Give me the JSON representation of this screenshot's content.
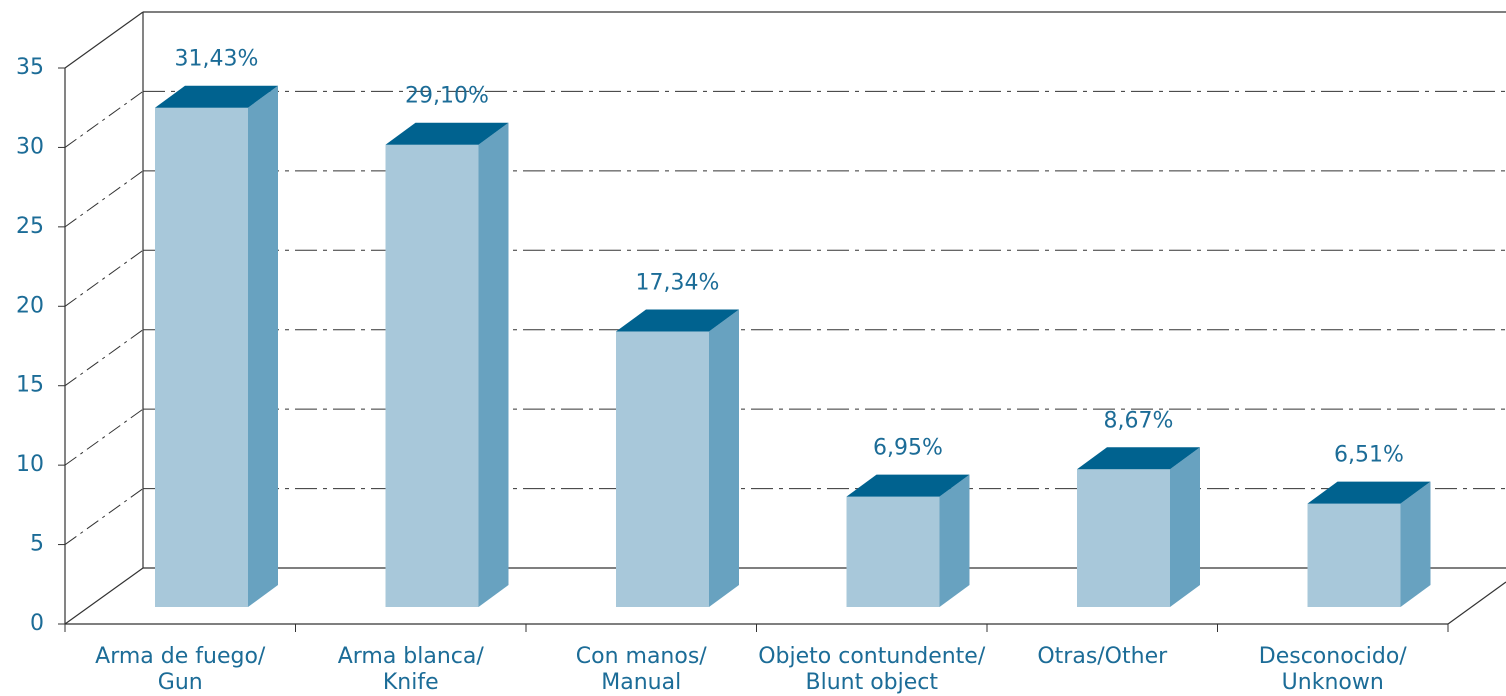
{
  "chart_data": {
    "type": "bar3d",
    "categories": [
      [
        "Arma de fuego/",
        "Gun"
      ],
      [
        "Arma blanca/",
        "Knife"
      ],
      [
        "Con manos/",
        "Manual"
      ],
      [
        "Objeto contundente/",
        "Blunt object"
      ],
      [
        "Otras/Other"
      ],
      [
        "Desconocido/",
        "Unknown"
      ]
    ],
    "values": [
      31.43,
      29.1,
      17.34,
      6.95,
      8.67,
      6.51
    ],
    "value_labels": [
      "31,43%",
      "29,10%",
      "17,34%",
      "6,95%",
      "8,67%",
      "6,51%"
    ],
    "colors": {
      "front": "#a8c8da",
      "side": "#68a2c0",
      "top": "#00628f"
    },
    "ylim": [
      0,
      35
    ],
    "yticks": [
      0,
      5,
      10,
      15,
      20,
      25,
      30,
      35
    ],
    "grid": true
  }
}
